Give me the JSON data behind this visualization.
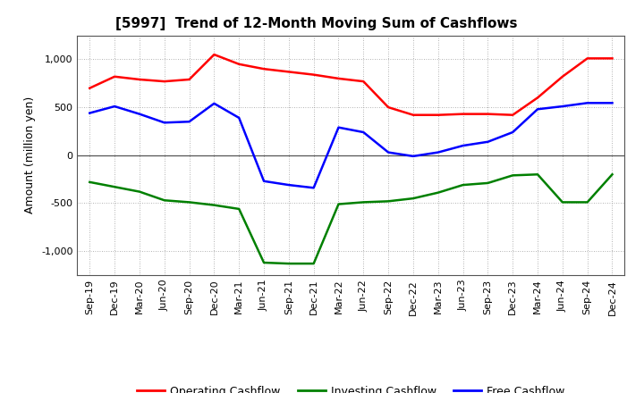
{
  "title": "[5997]  Trend of 12-Month Moving Sum of Cashflows",
  "ylabel": "Amount (million yen)",
  "x_labels": [
    "Sep-19",
    "Dec-19",
    "Mar-20",
    "Jun-20",
    "Sep-20",
    "Dec-20",
    "Mar-21",
    "Jun-21",
    "Sep-21",
    "Dec-21",
    "Mar-22",
    "Jun-22",
    "Sep-22",
    "Dec-22",
    "Mar-23",
    "Jun-23",
    "Sep-23",
    "Dec-23",
    "Mar-24",
    "Jun-24",
    "Sep-24",
    "Dec-24"
  ],
  "operating": [
    700,
    820,
    790,
    770,
    790,
    1050,
    950,
    900,
    870,
    840,
    800,
    770,
    500,
    420,
    420,
    430,
    430,
    420,
    600,
    820,
    1010,
    1010
  ],
  "investing": [
    -280,
    -330,
    -380,
    -470,
    -490,
    -520,
    -560,
    -1120,
    -1130,
    -1130,
    -510,
    -490,
    -480,
    -450,
    -390,
    -310,
    -290,
    -210,
    -200,
    -490,
    -490,
    -200
  ],
  "free": [
    440,
    510,
    430,
    340,
    350,
    540,
    390,
    -270,
    -310,
    -340,
    290,
    240,
    30,
    -10,
    30,
    100,
    140,
    240,
    480,
    510,
    545,
    545
  ],
  "ylim": [
    -1250,
    1250
  ],
  "yticks": [
    -1000,
    -500,
    0,
    500,
    1000
  ],
  "legend_labels": [
    "Operating Cashflow",
    "Investing Cashflow",
    "Free Cashflow"
  ],
  "line_colors": [
    "#ff0000",
    "#008000",
    "#0000ff"
  ],
  "bg_color": "#ffffff",
  "grid_color": "#999999",
  "title_fontsize": 11,
  "label_fontsize": 9,
  "tick_fontsize": 8
}
